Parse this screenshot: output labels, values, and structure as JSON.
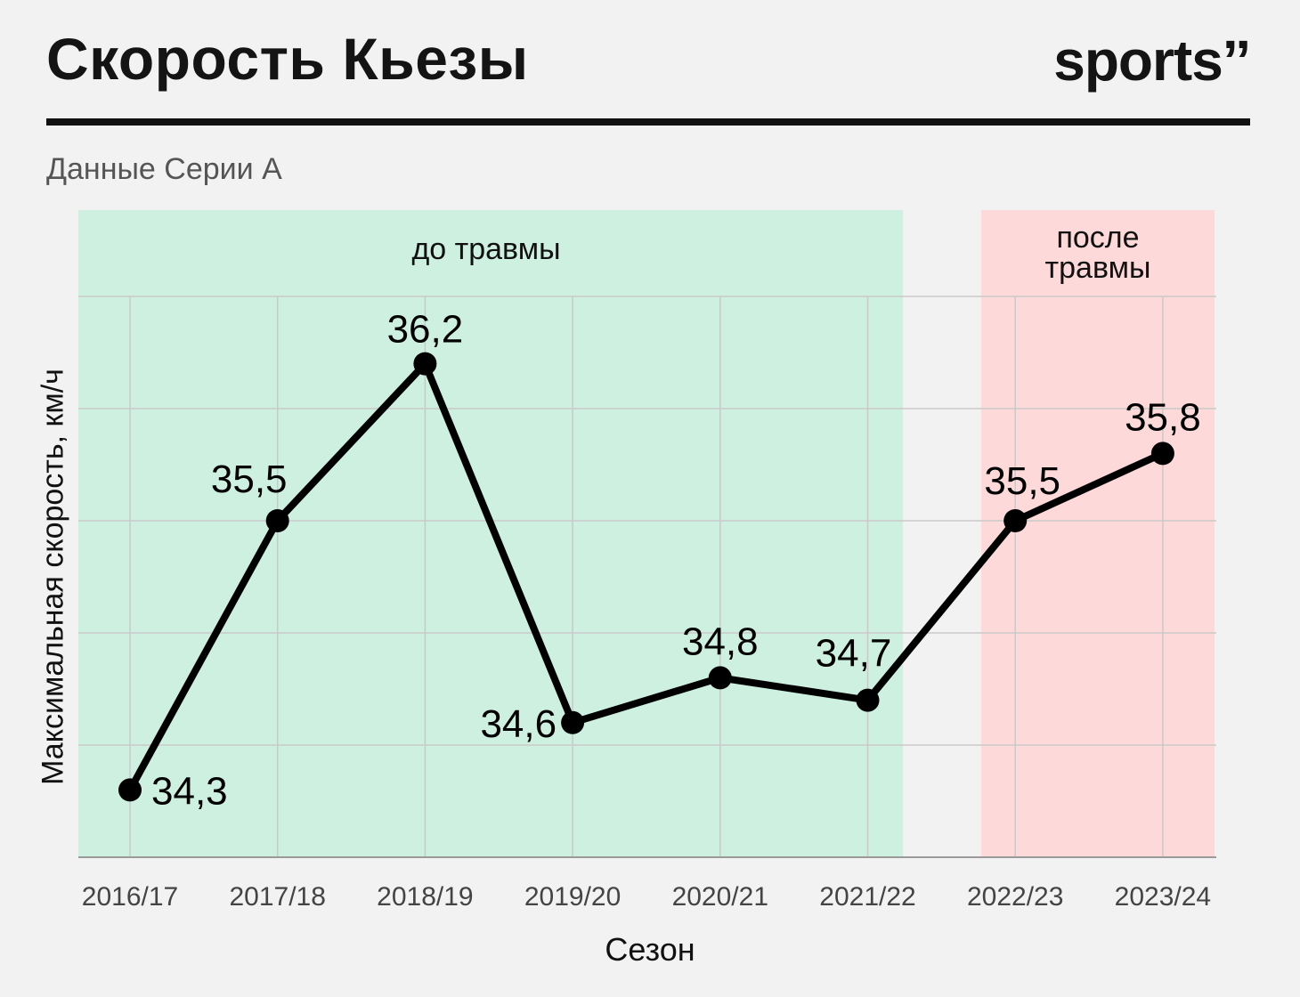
{
  "header": {
    "title": "Скорость Кьезы",
    "brand": "sports’’",
    "subtitle": "Данные Серии А"
  },
  "colors": {
    "background": "#f2f2f2",
    "before_region": "#cdf0e1",
    "after_region": "#fdd9d9",
    "line": "#000000",
    "grid": "#c9c9c9"
  },
  "chart_data": {
    "type": "line",
    "xlabel": "Сезон",
    "ylabel": "Максимальная скорость, км/ч",
    "categories": [
      "2016/17",
      "2017/18",
      "2018/19",
      "2019/20",
      "2020/21",
      "2021/22",
      "2022/23",
      "2023/24"
    ],
    "series": [
      {
        "values": [
          34.3,
          35.5,
          36.2,
          34.6,
          34.8,
          34.7,
          35.5,
          35.8
        ]
      }
    ],
    "data_labels": [
      "34,3",
      "35,5",
      "36,2",
      "34,6",
      "34,8",
      "34,7",
      "35,5",
      "35,8"
    ],
    "ylim": [
      34.0,
      36.5
    ],
    "grid": true,
    "regions": [
      {
        "label": "до травмы",
        "from": "2016/17",
        "to": "2021/22"
      },
      {
        "label": "после травмы",
        "from": "2022/23",
        "to": "2023/24"
      }
    ]
  }
}
